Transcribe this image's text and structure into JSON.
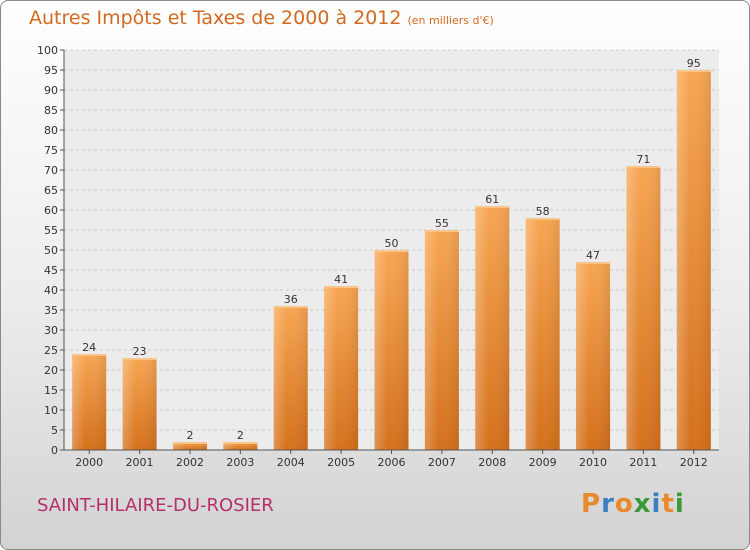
{
  "title": "Autres Impôts et Taxes de 2000 à 2012",
  "subtitle": "(en milliers d'€)",
  "commune": "SAINT-HILAIRE-DU-ROSIER",
  "brand": {
    "letters": [
      "P",
      "r",
      "o",
      "x",
      "i",
      "t",
      "i"
    ],
    "colors": [
      "#e8892b",
      "#3a7fc4",
      "#e8892b",
      "#3a9a3a",
      "#3a7fc4",
      "#e8892b",
      "#3a9a3a"
    ]
  },
  "colors": {
    "bar": "#f2922f",
    "bar_light": "#f8ad5d",
    "bar_dark": "#d36b16",
    "text_accent": "#d2691e"
  },
  "chart_data": {
    "type": "bar",
    "categories": [
      "2000",
      "2001",
      "2002",
      "2003",
      "2004",
      "2005",
      "2006",
      "2007",
      "2008",
      "2009",
      "2010",
      "2011",
      "2012"
    ],
    "values": [
      24,
      23,
      2,
      2,
      36,
      41,
      50,
      55,
      61,
      58,
      47,
      71,
      95
    ],
    "title": "Autres Impôts et Taxes de 2000 à 2012",
    "subtitle": "(en milliers d'€)",
    "xlabel": "",
    "ylabel": "",
    "ylim": [
      0,
      100
    ],
    "yticks": [
      0,
      5,
      10,
      15,
      20,
      25,
      30,
      35,
      40,
      45,
      50,
      55,
      60,
      65,
      70,
      75,
      80,
      85,
      90,
      95,
      100
    ],
    "grid": true,
    "legend": "none"
  }
}
